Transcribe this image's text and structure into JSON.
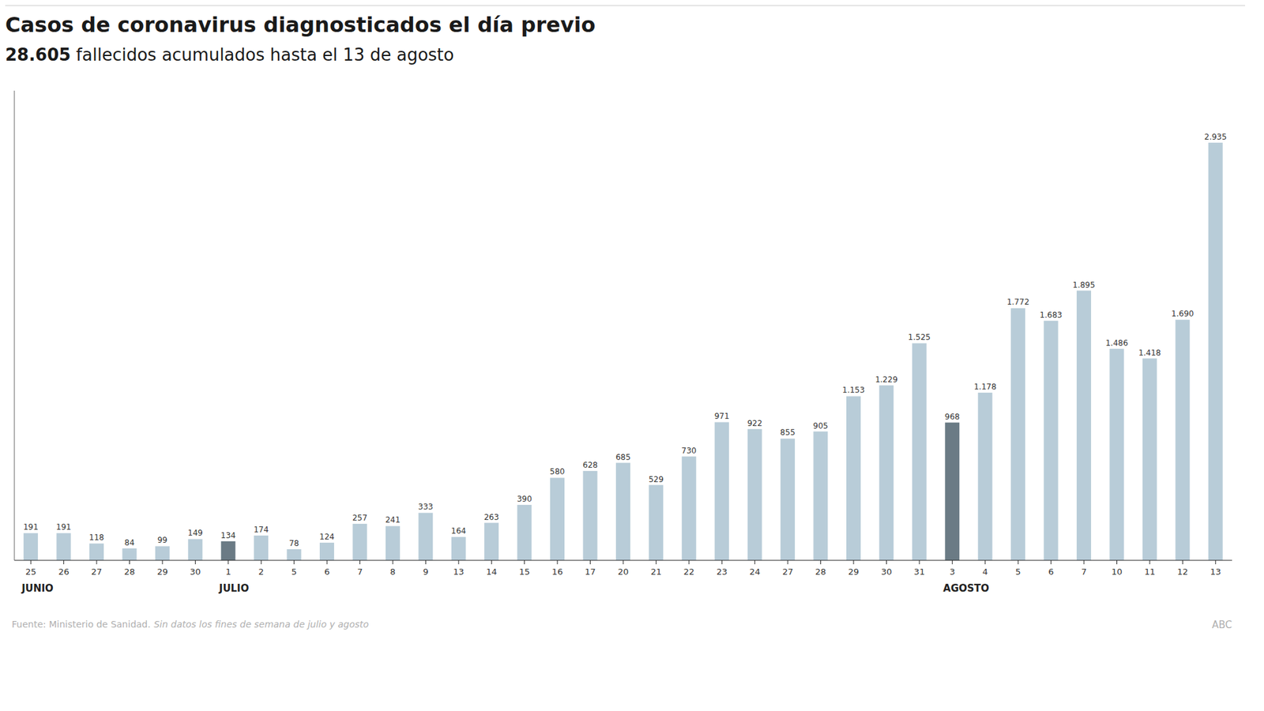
{
  "chart_data": {
    "type": "bar",
    "title": "Casos de coronavirus diagnosticados el día previo",
    "subtitle": "28.605 fallecidos acumulados hasta el 13 de agosto",
    "categories": [
      "25",
      "26",
      "27",
      "28",
      "29",
      "30",
      "1",
      "2",
      "5",
      "6",
      "7",
      "8",
      "9",
      "13",
      "14",
      "15",
      "16",
      "17",
      "20",
      "21",
      "22",
      "23",
      "24",
      "27",
      "28",
      "29",
      "30",
      "31",
      "3",
      "4",
      "5",
      "6",
      "7",
      "10",
      "11",
      "12",
      "13"
    ],
    "values": [
      191,
      191,
      118,
      84,
      99,
      149,
      134,
      174,
      78,
      124,
      257,
      241,
      333,
      164,
      263,
      390,
      580,
      628,
      685,
      529,
      730,
      971,
      922,
      855,
      905,
      1153,
      1229,
      1525,
      968,
      1178,
      1772,
      1683,
      1895,
      1486,
      1418,
      1690,
      2935
    ],
    "value_labels": [
      "191",
      "191",
      "118",
      "84",
      "99",
      "149",
      "134",
      "174",
      "78",
      "124",
      "257",
      "241",
      "333",
      "164",
      "263",
      "390",
      "580",
      "628",
      "685",
      "529",
      "730",
      "971",
      "922",
      "855",
      "905",
      "1.153",
      "1.229",
      "1.525",
      "968",
      "1.178",
      "1.772",
      "1.683",
      "1.895",
      "1.486",
      "1.418",
      "1.690",
      "2.935"
    ],
    "colors": [
      "#b8ccd8",
      "#b8ccd8",
      "#b8ccd8",
      "#b8ccd8",
      "#b8ccd8",
      "#b8ccd8",
      "#6b7b85",
      "#b8ccd8",
      "#b8ccd8",
      "#b8ccd8",
      "#b8ccd8",
      "#b8ccd8",
      "#b8ccd8",
      "#b8ccd8",
      "#b8ccd8",
      "#b8ccd8",
      "#b8ccd8",
      "#b8ccd8",
      "#b8ccd8",
      "#b8ccd8",
      "#b8ccd8",
      "#b8ccd8",
      "#b8ccd8",
      "#b8ccd8",
      "#b8ccd8",
      "#b8ccd8",
      "#b8ccd8",
      "#b8ccd8",
      "#6b7b85",
      "#b8ccd8",
      "#b8ccd8",
      "#b8ccd8",
      "#b8ccd8",
      "#b8ccd8",
      "#b8ccd8",
      "#b8ccd8",
      "#b8ccd8"
    ],
    "ylim": [
      0,
      3300
    ],
    "data_labels": true,
    "tick_labels": "x",
    "grid": false,
    "annotations": [
      {
        "text": "JUNIO",
        "x": 0
      },
      {
        "text": "JULIO",
        "x": 6
      },
      {
        "text": "AGOSTO",
        "x": 28
      },
      {
        "text": "Fuente: Ministerio de Sanidad."
      },
      {
        "text": "Sin datos los fines de semana de julio y agosto"
      },
      {
        "text": "ABC"
      }
    ]
  }
}
